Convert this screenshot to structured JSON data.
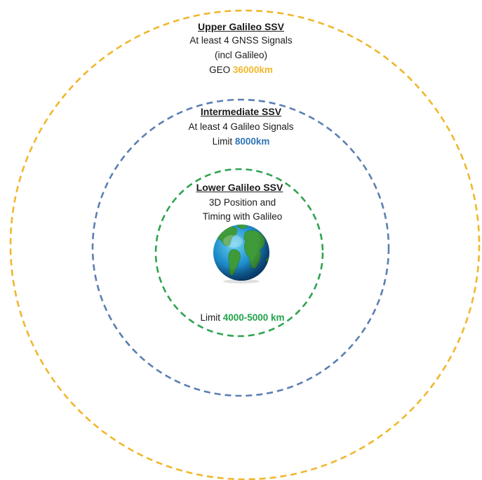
{
  "zones": {
    "upper": {
      "title": "Upper Galileo SSV",
      "line1": "At least 4 GNSS Signals",
      "line2": "(incl Galileo)",
      "limit_prefix": "GEO ",
      "limit_value": "36000km",
      "color": "#f0b72c"
    },
    "intermediate": {
      "title": "Intermediate SSV",
      "line1": "At least 4 Galileo Signals",
      "limit_prefix": "Limit ",
      "limit_value": "8000km",
      "color": "#5b7fb3"
    },
    "lower": {
      "title": "Lower Galileo SSV",
      "line1": "3D Position and",
      "line2": "Timing with Galileo",
      "limit_prefix": "Limit ",
      "limit_value": "4000-5000 km",
      "color": "#2ea34f"
    }
  },
  "center": {
    "icon": "earth-icon"
  }
}
